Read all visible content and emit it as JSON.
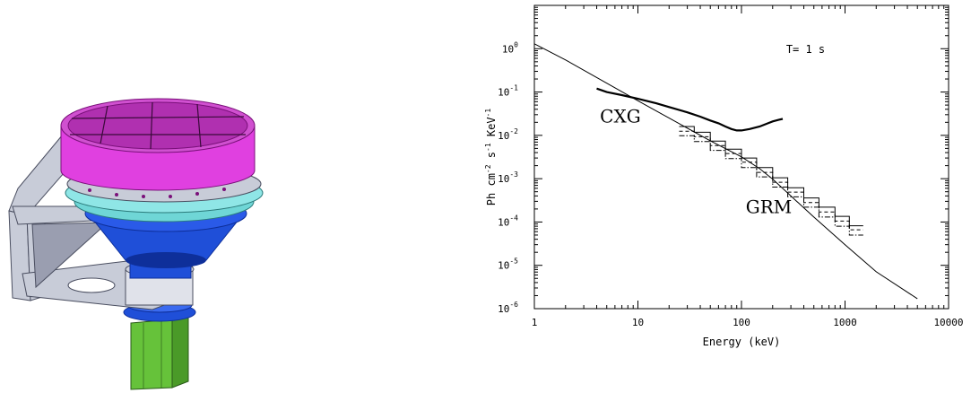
{
  "colors": {
    "detector_housing": "#e040e0",
    "detector_housing_dark": "#b020b0",
    "collar": "#6fd6d6",
    "cone": "#1f4fd8",
    "cone_dark": "#0e2f9a",
    "box": "#66c23a",
    "frame": "#c8ccd8",
    "frame_dark": "#6a6e80"
  },
  "chart_data": {
    "type": "line",
    "title": "",
    "xlabel": "Energy (keV)",
    "ylabel_parts": [
      "Ph cm",
      "-2",
      " s",
      "-1",
      " KeV",
      "-1"
    ],
    "xscale": "log",
    "yscale": "log",
    "xlim": [
      1,
      10000
    ],
    "ylim": [
      1e-06,
      10
    ],
    "grid": false,
    "x_ticks": [
      {
        "value": 1,
        "label": "1"
      },
      {
        "value": 10,
        "label": "10"
      },
      {
        "value": 100,
        "label": "100"
      },
      {
        "value": 1000,
        "label": "1000"
      },
      {
        "value": 10000,
        "label": "10000"
      }
    ],
    "y_ticks": [
      {
        "value": 1,
        "base": "10",
        "exp": "0"
      },
      {
        "value": 0.1,
        "base": "10",
        "exp": "-1"
      },
      {
        "value": 0.01,
        "base": "10",
        "exp": "-2"
      },
      {
        "value": 0.001,
        "base": "10",
        "exp": "-3"
      },
      {
        "value": 0.0001,
        "base": "10",
        "exp": "-4"
      },
      {
        "value": 1e-05,
        "base": "10",
        "exp": "-5"
      },
      {
        "value": 1e-06,
        "base": "10",
        "exp": "-6"
      }
    ],
    "annotations": [
      {
        "text": "T= 1 s",
        "x": 270,
        "y": 0.8,
        "style": "small"
      },
      {
        "text": "CXG",
        "x": 4.3,
        "y": 0.02,
        "style": "big"
      },
      {
        "text": "GRM",
        "x": 110,
        "y": 0.00016,
        "style": "big"
      }
    ],
    "series": [
      {
        "style": "model",
        "x": [
          1,
          2,
          5,
          10,
          20,
          50,
          100,
          150,
          200,
          300,
          500,
          1000,
          2000,
          5000
        ],
        "y": [
          1.3,
          0.55,
          0.16,
          0.063,
          0.025,
          0.0075,
          0.0032,
          0.0017,
          0.00098,
          0.0004,
          0.00013,
          3e-05,
          7.1e-06,
          1.7e-06
        ]
      },
      {
        "style": "cxg",
        "x": [
          4,
          5,
          7,
          10,
          15,
          20,
          30,
          40,
          50,
          60,
          70,
          80,
          90,
          100,
          120,
          150,
          180,
          200,
          230,
          250
        ],
        "y": [
          0.12,
          0.1,
          0.085,
          0.07,
          0.055,
          0.045,
          0.034,
          0.027,
          0.022,
          0.019,
          0.016,
          0.014,
          0.013,
          0.013,
          0.014,
          0.016,
          0.019,
          0.021,
          0.023,
          0.024
        ]
      },
      {
        "style": "grm-solid",
        "edges": [
          25,
          35,
          50,
          70,
          100,
          140,
          200,
          280,
          400,
          560,
          800,
          1100,
          1500
        ],
        "y": [
          0.016,
          0.0118,
          0.0074,
          0.0048,
          0.003,
          0.0018,
          0.00105,
          0.00062,
          0.00036,
          0.00022,
          0.000135,
          8.2e-05
        ]
      },
      {
        "style": "grm-dashed",
        "edges": [
          25,
          35,
          50,
          70,
          100,
          140,
          200,
          280,
          400,
          560,
          800,
          1100,
          1500
        ],
        "y": [
          0.0125,
          0.0093,
          0.0058,
          0.0038,
          0.0024,
          0.0014,
          0.00083,
          0.00049,
          0.00028,
          0.00017,
          0.000105,
          6.6e-05
        ]
      },
      {
        "style": "grm-dashdot",
        "edges": [
          25,
          35,
          50,
          70,
          100,
          140,
          200,
          280,
          400,
          560,
          800,
          1100,
          1500
        ],
        "y": [
          0.0098,
          0.0072,
          0.0045,
          0.0029,
          0.0018,
          0.0011,
          0.00064,
          0.00038,
          0.00022,
          0.00013,
          8e-05,
          5e-05
        ]
      }
    ]
  }
}
